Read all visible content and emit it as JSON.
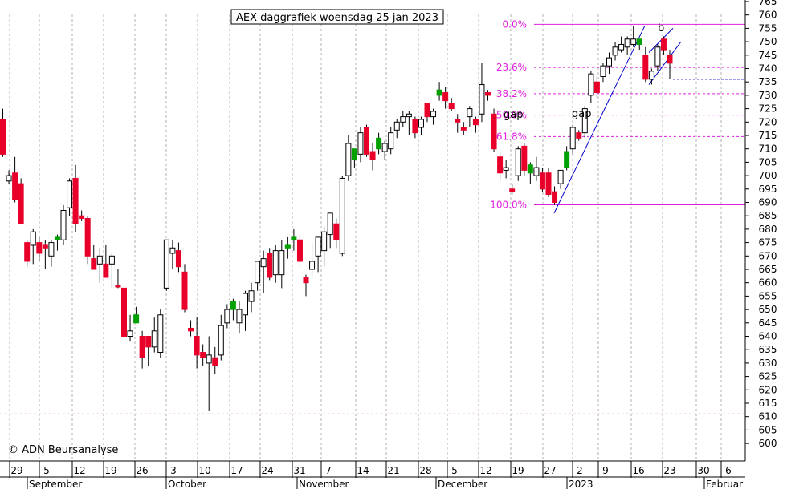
{
  "chart_data": {
    "type": "candlestick",
    "title": "AEX daggrafiek woensdag 25 jan 2023",
    "copyright": "© ADN Beursanalyse",
    "ylim": [
      597,
      768
    ],
    "y_ticks": [
      600,
      605,
      610,
      615,
      620,
      625,
      630,
      635,
      640,
      645,
      650,
      655,
      660,
      665,
      670,
      675,
      680,
      685,
      690,
      695,
      700,
      705,
      710,
      715,
      720,
      725,
      730,
      735,
      740,
      745,
      750,
      755,
      760,
      765
    ],
    "day_labels": [
      "29",
      "5",
      "12",
      "19",
      "26",
      "3",
      "10",
      "17",
      "24",
      "31",
      "7",
      "14",
      "21",
      "28",
      "5",
      "12",
      "19",
      "27",
      "2",
      "9",
      "16",
      "23",
      "30",
      "6"
    ],
    "month_labels": [
      "September",
      "October",
      "November",
      "December",
      "2023",
      "Februar"
    ],
    "fib_levels": [
      {
        "label": "0.0%",
        "value": 756.5
      },
      {
        "label": "23.6%",
        "value": 740.4
      },
      {
        "label": "38.2%",
        "value": 730.6
      },
      {
        "label": "50.0%",
        "value": 722.6
      },
      {
        "label": "61.8%",
        "value": 714.6
      },
      {
        "label": "100.0%",
        "value": 689.1
      }
    ],
    "support_level": 736,
    "ref_line": 611,
    "annotations": [
      {
        "text": "gap"
      },
      {
        "text": "gap"
      },
      {
        "text": "b"
      }
    ],
    "candles": [
      {
        "o": 721,
        "h": 725,
        "l": 707,
        "c": 708,
        "col": "r"
      },
      {
        "o": 698,
        "h": 702,
        "l": 697,
        "c": 700,
        "col": "w"
      },
      {
        "o": 701,
        "h": 707,
        "l": 690,
        "c": 691,
        "col": "r"
      },
      {
        "o": 697,
        "h": 699,
        "l": 682,
        "c": 682,
        "col": "r"
      },
      {
        "o": 675,
        "h": 676,
        "l": 666,
        "c": 668,
        "col": "r"
      },
      {
        "o": 674,
        "h": 680,
        "l": 667,
        "c": 679,
        "col": "w"
      },
      {
        "o": 675,
        "h": 677,
        "l": 668,
        "c": 671,
        "col": "r"
      },
      {
        "o": 673,
        "h": 676,
        "l": 665,
        "c": 674,
        "col": "r"
      },
      {
        "o": 670,
        "h": 676,
        "l": 666,
        "c": 675,
        "col": "w"
      },
      {
        "o": 677,
        "h": 678,
        "l": 672,
        "c": 676,
        "col": "g"
      },
      {
        "o": 676,
        "h": 689,
        "l": 674,
        "c": 687,
        "col": "w"
      },
      {
        "o": 688,
        "h": 699,
        "l": 685,
        "c": 698,
        "col": "w"
      },
      {
        "o": 699,
        "h": 704,
        "l": 679,
        "c": 682,
        "col": "r"
      },
      {
        "o": 685,
        "h": 687,
        "l": 683,
        "c": 684,
        "col": "r"
      },
      {
        "o": 684,
        "h": 685,
        "l": 667,
        "c": 670,
        "col": "r"
      },
      {
        "o": 669,
        "h": 674,
        "l": 665,
        "c": 665,
        "col": "r"
      },
      {
        "o": 667,
        "h": 673,
        "l": 660,
        "c": 670,
        "col": "w"
      },
      {
        "o": 667,
        "h": 674,
        "l": 662,
        "c": 662,
        "col": "r"
      },
      {
        "o": 667,
        "h": 671,
        "l": 658,
        "c": 670,
        "col": "w"
      },
      {
        "o": 659,
        "h": 665,
        "l": 658,
        "c": 659,
        "col": "r"
      },
      {
        "o": 658,
        "h": 659,
        "l": 639,
        "c": 640,
        "col": "r"
      },
      {
        "o": 642,
        "h": 648,
        "l": 638,
        "c": 640,
        "col": "w"
      },
      {
        "o": 648,
        "h": 651,
        "l": 645,
        "c": 645,
        "col": "g"
      },
      {
        "o": 640,
        "h": 642,
        "l": 628,
        "c": 632,
        "col": "r"
      },
      {
        "o": 636,
        "h": 640,
        "l": 629,
        "c": 640,
        "col": "r"
      },
      {
        "o": 636,
        "h": 647,
        "l": 634,
        "c": 642,
        "col": "w"
      },
      {
        "o": 634,
        "h": 650,
        "l": 632,
        "c": 648,
        "col": "w"
      },
      {
        "o": 658,
        "h": 676,
        "l": 657,
        "c": 676,
        "col": "w"
      },
      {
        "o": 673,
        "h": 676,
        "l": 665,
        "c": 671,
        "col": "w"
      },
      {
        "o": 672,
        "h": 675,
        "l": 664,
        "c": 666,
        "col": "r"
      },
      {
        "o": 664,
        "h": 667,
        "l": 649,
        "c": 650,
        "col": "r"
      },
      {
        "o": 643,
        "h": 646,
        "l": 640,
        "c": 642,
        "col": "r"
      },
      {
        "o": 640,
        "h": 647,
        "l": 628,
        "c": 633,
        "col": "r"
      },
      {
        "o": 634,
        "h": 637,
        "l": 629,
        "c": 632,
        "col": "r"
      },
      {
        "o": 630,
        "h": 640,
        "l": 612,
        "c": 633,
        "col": "w"
      },
      {
        "o": 632,
        "h": 636,
        "l": 626,
        "c": 629,
        "col": "r"
      },
      {
        "o": 633,
        "h": 648,
        "l": 631,
        "c": 644,
        "col": "w"
      },
      {
        "o": 645,
        "h": 652,
        "l": 643,
        "c": 650,
        "col": "w"
      },
      {
        "o": 650,
        "h": 654,
        "l": 646,
        "c": 653,
        "col": "g"
      },
      {
        "o": 645,
        "h": 653,
        "l": 641,
        "c": 650,
        "col": "w"
      },
      {
        "o": 648,
        "h": 657,
        "l": 642,
        "c": 656,
        "col": "w"
      },
      {
        "o": 653,
        "h": 660,
        "l": 649,
        "c": 657,
        "col": "w"
      },
      {
        "o": 660,
        "h": 668,
        "l": 657,
        "c": 668,
        "col": "w"
      },
      {
        "o": 666,
        "h": 672,
        "l": 656,
        "c": 669,
        "col": "w"
      },
      {
        "o": 671,
        "h": 673,
        "l": 661,
        "c": 662,
        "col": "r"
      },
      {
        "o": 663,
        "h": 674,
        "l": 660,
        "c": 672,
        "col": "w"
      },
      {
        "o": 672,
        "h": 676,
        "l": 658,
        "c": 663,
        "col": "w"
      },
      {
        "o": 674,
        "h": 677,
        "l": 669,
        "c": 673,
        "col": "g"
      },
      {
        "o": 676,
        "h": 680,
        "l": 672,
        "c": 677,
        "col": "g"
      },
      {
        "o": 676,
        "h": 678,
        "l": 666,
        "c": 668,
        "col": "r"
      },
      {
        "o": 662,
        "h": 663,
        "l": 655,
        "c": 660,
        "col": "r"
      },
      {
        "o": 665,
        "h": 675,
        "l": 662,
        "c": 668,
        "col": "w"
      },
      {
        "o": 670,
        "h": 677,
        "l": 664,
        "c": 677,
        "col": "w"
      },
      {
        "o": 672,
        "h": 681,
        "l": 666,
        "c": 679,
        "col": "w"
      },
      {
        "o": 678,
        "h": 686,
        "l": 673,
        "c": 686,
        "col": "w"
      },
      {
        "o": 682,
        "h": 684,
        "l": 673,
        "c": 676,
        "col": "r"
      },
      {
        "o": 671,
        "h": 700,
        "l": 670,
        "c": 699,
        "col": "w"
      },
      {
        "o": 700,
        "h": 715,
        "l": 698,
        "c": 712,
        "col": "w"
      },
      {
        "o": 706,
        "h": 710,
        "l": 703,
        "c": 710,
        "col": "g"
      },
      {
        "o": 708,
        "h": 718,
        "l": 705,
        "c": 716,
        "col": "w"
      },
      {
        "o": 718,
        "h": 719,
        "l": 707,
        "c": 708,
        "col": "r"
      },
      {
        "o": 709,
        "h": 712,
        "l": 702,
        "c": 706,
        "col": "r"
      },
      {
        "o": 710,
        "h": 716,
        "l": 708,
        "c": 714,
        "col": "g"
      },
      {
        "o": 712,
        "h": 713,
        "l": 706,
        "c": 709,
        "col": "w"
      },
      {
        "o": 710,
        "h": 718,
        "l": 708,
        "c": 716,
        "col": "w"
      },
      {
        "o": 717,
        "h": 721,
        "l": 714,
        "c": 720,
        "col": "w"
      },
      {
        "o": 720,
        "h": 724,
        "l": 718,
        "c": 722,
        "col": "w"
      },
      {
        "o": 722,
        "h": 724,
        "l": 715,
        "c": 723,
        "col": "w"
      },
      {
        "o": 721,
        "h": 722,
        "l": 714,
        "c": 716,
        "col": "r"
      },
      {
        "o": 718,
        "h": 722,
        "l": 715,
        "c": 721,
        "col": "w"
      },
      {
        "o": 727,
        "h": 727,
        "l": 720,
        "c": 722,
        "col": "r"
      },
      {
        "o": 724,
        "h": 725,
        "l": 719,
        "c": 722,
        "col": "w"
      },
      {
        "o": 732,
        "h": 735,
        "l": 728,
        "c": 730,
        "col": "g"
      },
      {
        "o": 731,
        "h": 733,
        "l": 725,
        "c": 728,
        "col": "r"
      },
      {
        "o": 727,
        "h": 729,
        "l": 724,
        "c": 725,
        "col": "r"
      },
      {
        "o": 721,
        "h": 723,
        "l": 716,
        "c": 720,
        "col": "r"
      },
      {
        "o": 717,
        "h": 720,
        "l": 715,
        "c": 718,
        "col": "r"
      },
      {
        "o": 722,
        "h": 726,
        "l": 718,
        "c": 725,
        "col": "w"
      },
      {
        "o": 721,
        "h": 722,
        "l": 716,
        "c": 719,
        "col": "r"
      },
      {
        "o": 723,
        "h": 742,
        "l": 720,
        "c": 734,
        "col": "w"
      },
      {
        "o": 730,
        "h": 732,
        "l": 728,
        "c": 731,
        "col": "r"
      },
      {
        "o": 723,
        "h": 725,
        "l": 709,
        "c": 710,
        "col": "r"
      },
      {
        "o": 707,
        "h": 709,
        "l": 698,
        "c": 701,
        "col": "r"
      },
      {
        "o": 703,
        "h": 706,
        "l": 699,
        "c": 702,
        "col": "w"
      },
      {
        "o": 695,
        "h": 697,
        "l": 693,
        "c": 694,
        "col": "r"
      },
      {
        "o": 700,
        "h": 711,
        "l": 698,
        "c": 710,
        "col": "w"
      },
      {
        "o": 711,
        "h": 712,
        "l": 700,
        "c": 702,
        "col": "r"
      },
      {
        "o": 701,
        "h": 705,
        "l": 697,
        "c": 704,
        "col": "g"
      },
      {
        "o": 703,
        "h": 707,
        "l": 698,
        "c": 700,
        "col": "w"
      },
      {
        "o": 701,
        "h": 703,
        "l": 694,
        "c": 695,
        "col": "r"
      },
      {
        "o": 701,
        "h": 703,
        "l": 692,
        "c": 693,
        "col": "r"
      },
      {
        "o": 694,
        "h": 696,
        "l": 689,
        "c": 690,
        "col": "r"
      },
      {
        "o": 697,
        "h": 702,
        "l": 695,
        "c": 702,
        "col": "w"
      },
      {
        "o": 703,
        "h": 711,
        "l": 702,
        "c": 709,
        "col": "g"
      },
      {
        "o": 710,
        "h": 719,
        "l": 708,
        "c": 718,
        "col": "w"
      },
      {
        "o": 716,
        "h": 717,
        "l": 713,
        "c": 714,
        "col": "r"
      },
      {
        "o": 716,
        "h": 726,
        "l": 714,
        "c": 725,
        "col": "w"
      },
      {
        "o": 730,
        "h": 739,
        "l": 727,
        "c": 738,
        "col": "w"
      },
      {
        "o": 735,
        "h": 737,
        "l": 729,
        "c": 731,
        "col": "r"
      },
      {
        "o": 737,
        "h": 742,
        "l": 735,
        "c": 741,
        "col": "w"
      },
      {
        "o": 741,
        "h": 746,
        "l": 738,
        "c": 744,
        "col": "w"
      },
      {
        "o": 745,
        "h": 750,
        "l": 743,
        "c": 748,
        "col": "w"
      },
      {
        "o": 747,
        "h": 752,
        "l": 746,
        "c": 749,
        "col": "w"
      },
      {
        "o": 748,
        "h": 752,
        "l": 745,
        "c": 751,
        "col": "w"
      },
      {
        "o": 751,
        "h": 756,
        "l": 748,
        "c": 749,
        "col": "w"
      },
      {
        "o": 749,
        "h": 751,
        "l": 747,
        "c": 751,
        "col": "g"
      },
      {
        "o": 745,
        "h": 748,
        "l": 735,
        "c": 736,
        "col": "r"
      },
      {
        "o": 736,
        "h": 740,
        "l": 734,
        "c": 739,
        "col": "w"
      },
      {
        "o": 741,
        "h": 749,
        "l": 739,
        "c": 748,
        "col": "w"
      },
      {
        "o": 751,
        "h": 752,
        "l": 745,
        "c": 747,
        "col": "r"
      },
      {
        "o": 745,
        "h": 747,
        "l": 736,
        "c": 742,
        "col": "r"
      }
    ]
  }
}
